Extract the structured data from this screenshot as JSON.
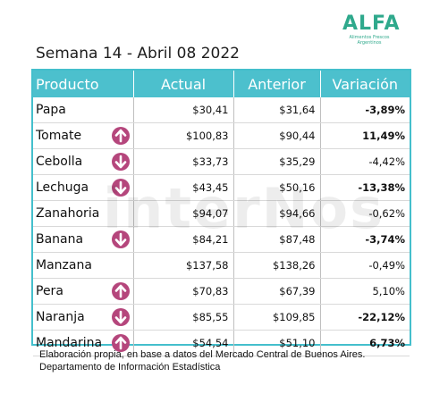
{
  "header": {
    "title": "Semana 14 - Abril 08 2022"
  },
  "logo": {
    "mark": "ALFA",
    "subtitle": "Alimentos Frescos Argentinos"
  },
  "table": {
    "columns": [
      "Producto",
      "Actual",
      "Anterior",
      "Variación"
    ],
    "rows": [
      {
        "producto": "Papa",
        "actual": "$30,41",
        "anterior": "$31,64",
        "variacion": "-3,89%",
        "bold": true,
        "arrow": "none"
      },
      {
        "producto": "Tomate",
        "actual": "$100,83",
        "anterior": "$90,44",
        "variacion": "11,49%",
        "bold": true,
        "arrow": "up"
      },
      {
        "producto": "Cebolla",
        "actual": "$33,73",
        "anterior": "$35,29",
        "variacion": "-4,42%",
        "bold": false,
        "arrow": "down"
      },
      {
        "producto": "Lechuga",
        "actual": "$43,45",
        "anterior": "$50,16",
        "variacion": "-13,38%",
        "bold": true,
        "arrow": "down"
      },
      {
        "producto": "Zanahoria",
        "actual": "$94,07",
        "anterior": "$94,66",
        "variacion": "-0,62%",
        "bold": false,
        "arrow": "none"
      },
      {
        "producto": "Banana",
        "actual": "$84,21",
        "anterior": "$87,48",
        "variacion": "-3,74%",
        "bold": true,
        "arrow": "down"
      },
      {
        "producto": "Manzana",
        "actual": "$137,58",
        "anterior": "$138,26",
        "variacion": "-0,49%",
        "bold": false,
        "arrow": "none"
      },
      {
        "producto": "Pera",
        "actual": "$70,83",
        "anterior": "$67,39",
        "variacion": "5,10%",
        "bold": false,
        "arrow": "up"
      },
      {
        "producto": "Naranja",
        "actual": "$85,55",
        "anterior": "$109,85",
        "variacion": "-22,12%",
        "bold": true,
        "arrow": "down"
      },
      {
        "producto": "Mandarina",
        "actual": "$54,54",
        "anterior": "$51,10",
        "variacion": "6,73%",
        "bold": true,
        "arrow": "up"
      }
    ]
  },
  "watermark": "interNos",
  "footer": {
    "line1": "Elaboración propia, en base a datos del Mercado Central de Buenos Aires.",
    "line2": "Departamento de Información Estadística"
  },
  "colors": {
    "header_bg": "#4cc0cd",
    "arrow": "#b5467c",
    "logo": "#2fa98c"
  }
}
